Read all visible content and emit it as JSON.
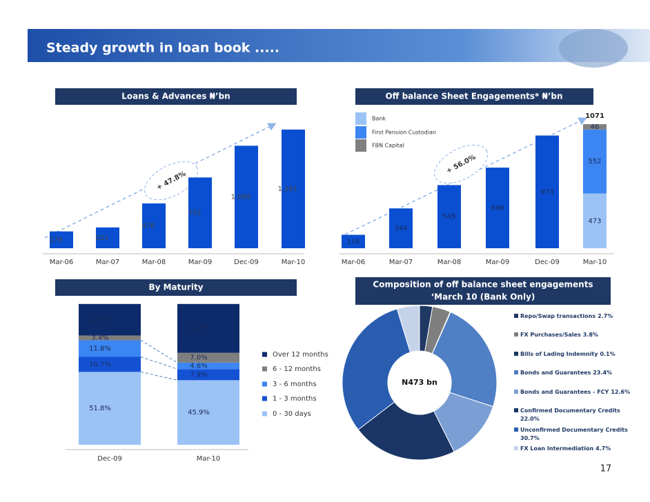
{
  "header": {
    "title": "Steady growth in loan book .....",
    "page_number": "17"
  },
  "chart_data": [
    {
      "type": "bar",
      "title": "Loans & Advances ₦’bn",
      "annotation": "+ 47.8%",
      "categories": [
        "Mar-06",
        "Mar-07",
        "Mar-08",
        "Mar-09",
        "Dec-09",
        "Mar-10"
      ],
      "values": [
        179,
        221,
        476,
        752,
        1089,
        1261
      ],
      "value_labels": [
        "179",
        "221",
        "476",
        "752",
        "1,089",
        "1,261"
      ],
      "color": "#0a4fd1"
    },
    {
      "type": "stacked_bar",
      "title": "Off balance Sheet Engagements* ₦’bn",
      "annotation": "+ 56.0%",
      "categories": [
        "Mar-06",
        "Mar-07",
        "Mar-08",
        "Mar-09",
        "Dec-09",
        "Mar-10"
      ],
      "series": [
        {
          "color": "#0a4fd1",
          "values": [
            116,
            344,
            545,
            696,
            973,
            null
          ]
        },
        {
          "name": "Bank",
          "color": "#9cc3f6",
          "values": [
            null,
            null,
            null,
            null,
            null,
            473
          ]
        },
        {
          "name": "First Pension Custodian",
          "color": "#3b86f2",
          "values": [
            null,
            null,
            null,
            null,
            null,
            552
          ]
        },
        {
          "name": "FBN Capital",
          "color": "#808080",
          "values": [
            null,
            null,
            null,
            null,
            null,
            46
          ]
        }
      ],
      "totals": [
        null,
        null,
        null,
        null,
        null,
        1071
      ]
    },
    {
      "type": "stacked_bar",
      "title": "By Maturity",
      "categories": [
        "Dec-09",
        "Mar-10"
      ],
      "series": [
        {
          "name": "0 - 30 days",
          "color": "#9cc3f6",
          "values": [
            51.8,
            45.9
          ],
          "value_labels": [
            "51.8%",
            "45.9%"
          ]
        },
        {
          "name": "1 - 3 months",
          "color": "#1452d4",
          "values": [
            10.7,
            7.9
          ],
          "value_labels": [
            "10.7%",
            "7.9%"
          ]
        },
        {
          "name": "3 - 6 months",
          "color": "#3b86f2",
          "values": [
            11.8,
            4.6
          ],
          "value_labels": [
            "11.8%",
            "4.6%"
          ]
        },
        {
          "name": "6 - 12 months",
          "color": "#7f7f7f",
          "values": [
            3.4,
            7.0
          ],
          "value_labels": [
            "3.4%",
            "7.0%"
          ]
        },
        {
          "name": "Over 12 months",
          "color": "#0d2b6b",
          "values": [
            22.4,
            34.7
          ],
          "value_labels": [
            "22.4%",
            "34.7%"
          ]
        }
      ]
    },
    {
      "type": "pie",
      "title": "Composition of off balance sheet engagements",
      "subtitle": "‘March 10 (Bank Only)",
      "annotation": "N473 bn",
      "categories": [
        "Repo/Swap transactions",
        "FX Purchases/Sales",
        "Bills of Lading Indemnity",
        "Bonds and Guarantees",
        "Bonds and Guarantees - FCY",
        "Confirmed Documentary Credits",
        "Unconfirmed Documentary Credits",
        "FX Loan Intermediation"
      ],
      "values": [
        2.7,
        3.8,
        0.1,
        23.4,
        12.6,
        22.0,
        30.7,
        4.7
      ],
      "value_labels": [
        "2.7%",
        "3.8%",
        "0.1%",
        "23.4%",
        "12.6%",
        "22.0%",
        "30.7%",
        "4.7%"
      ],
      "colors": [
        "#1f3864",
        "#7f7f7f",
        "#17375e",
        "#4f7fc4",
        "#7b9fd4",
        "#1a3566",
        "#2a5db0",
        "#c5d3ea"
      ]
    }
  ]
}
